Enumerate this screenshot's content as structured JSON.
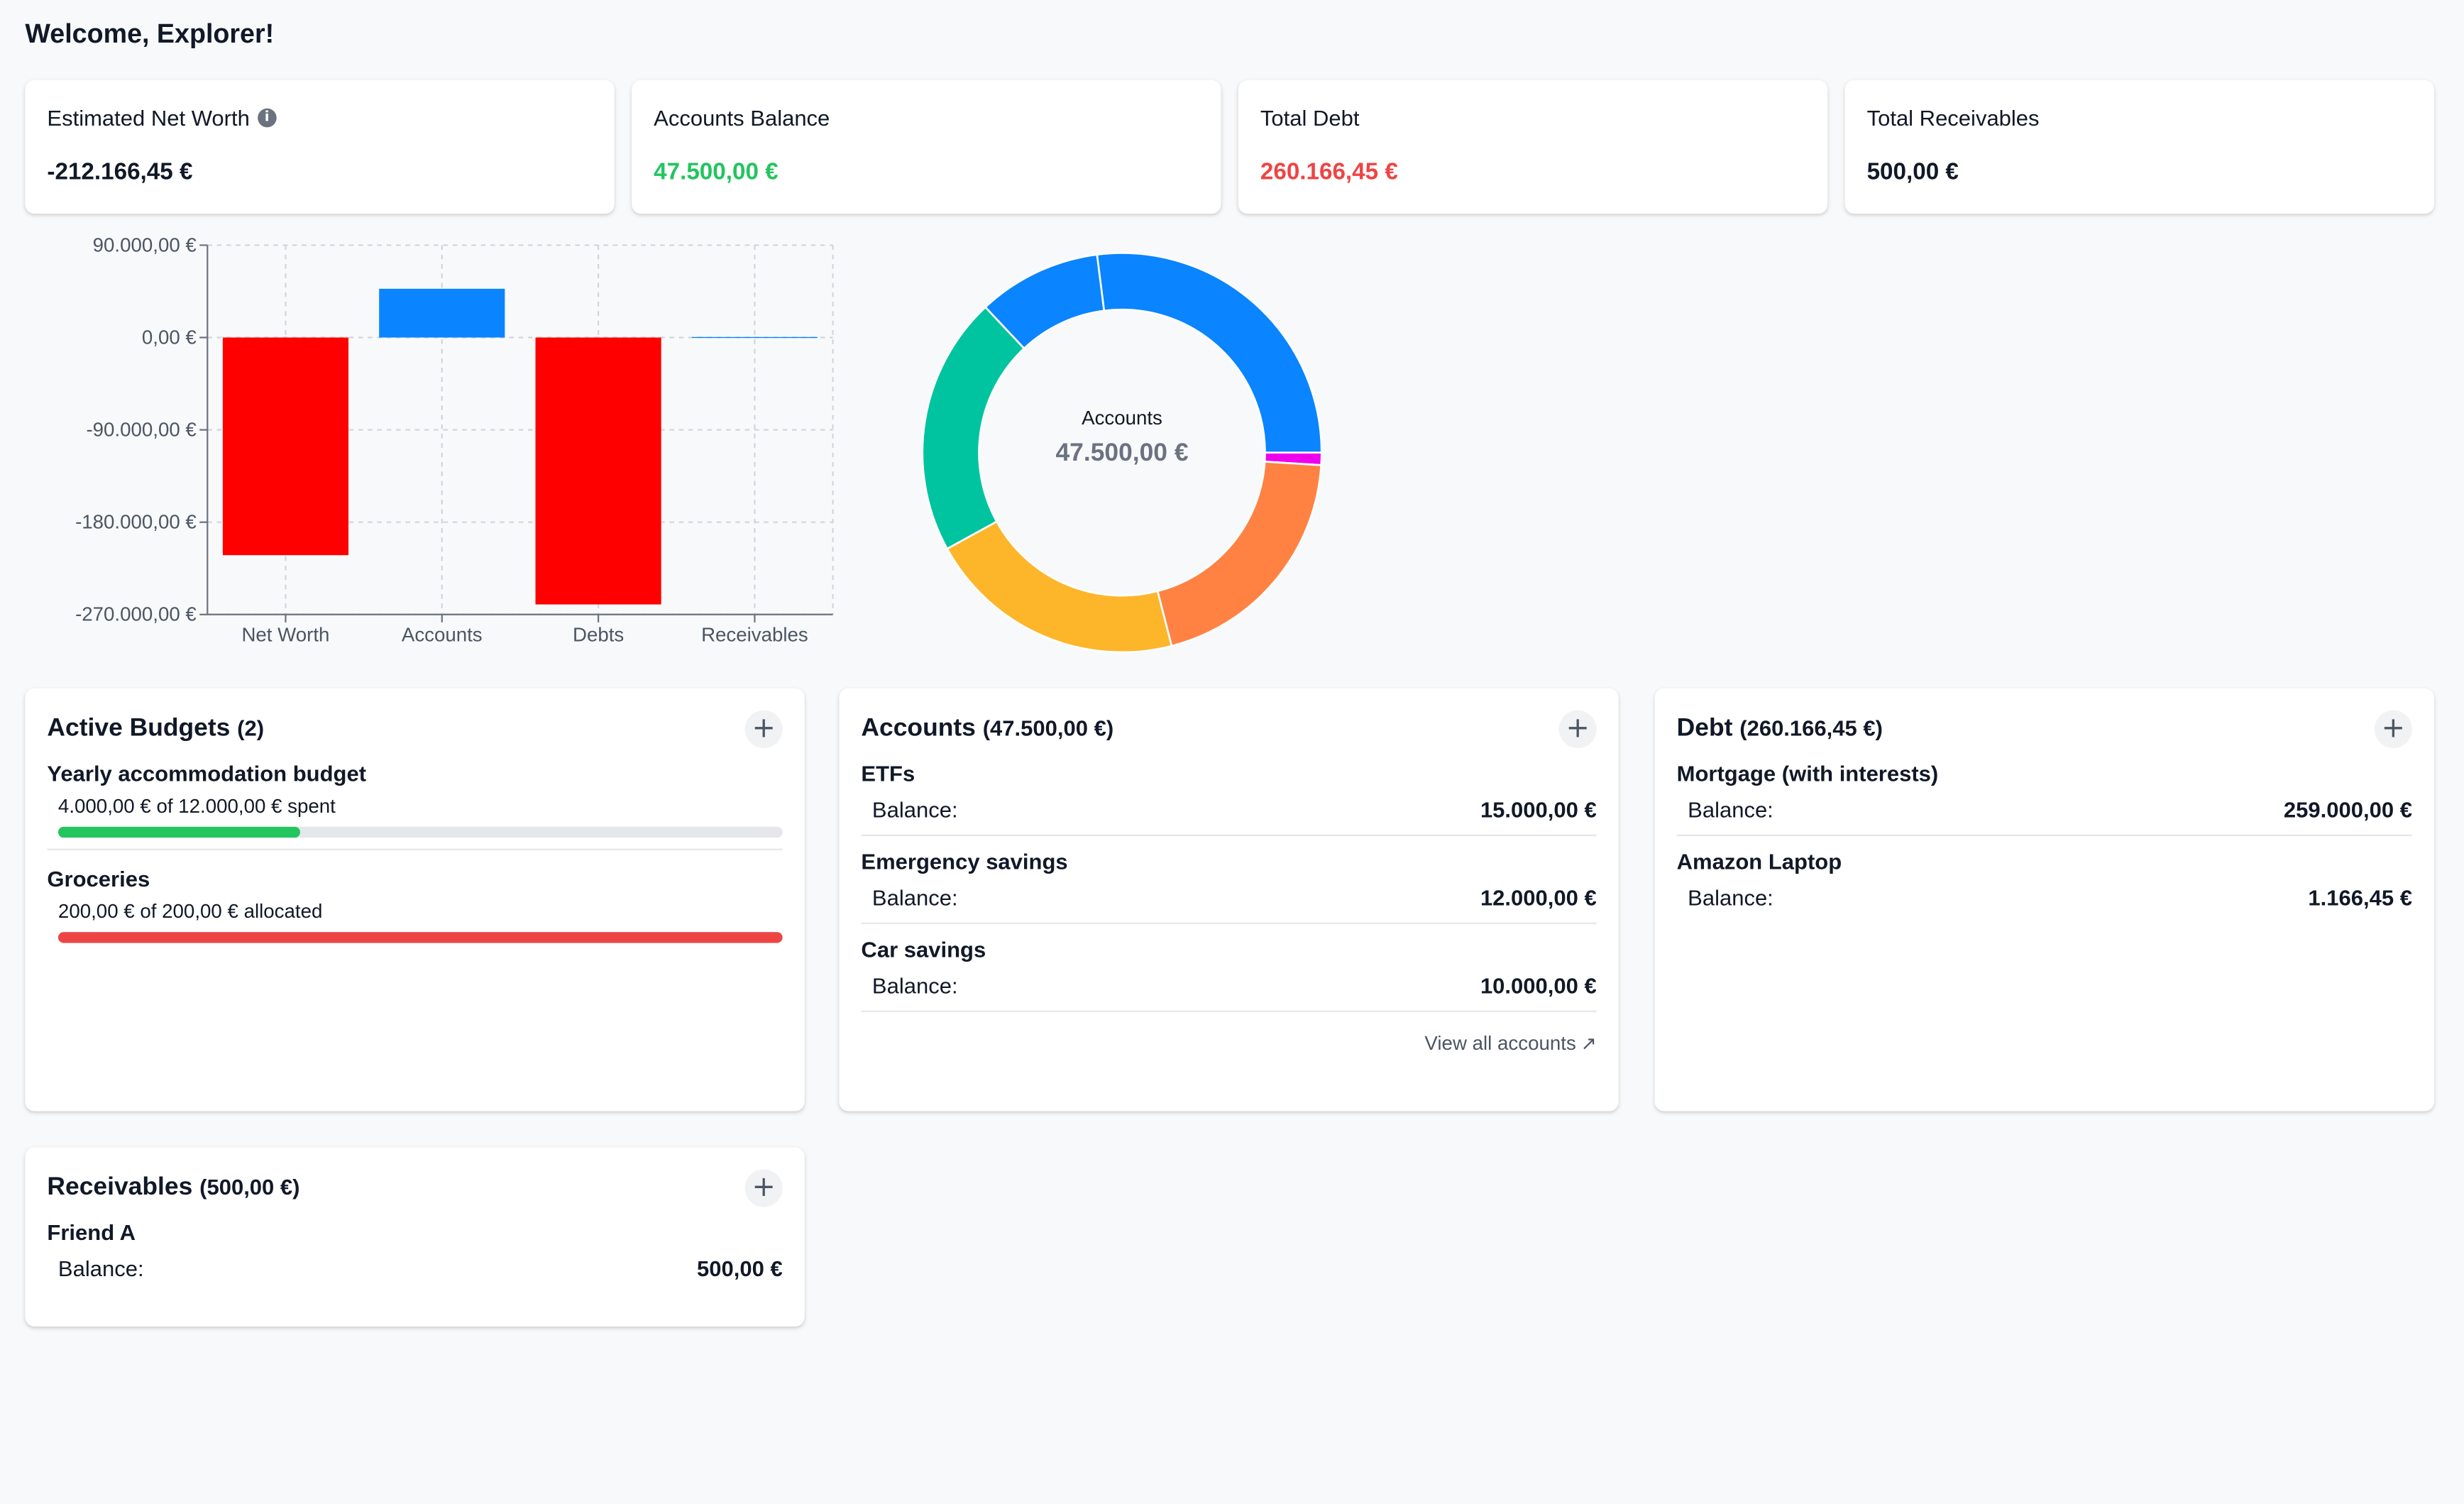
{
  "welcome": "Welcome, Explorer!",
  "stats": [
    {
      "label": "Estimated Net Worth",
      "value": "-212.166,45 €",
      "color": "#111827"
    },
    {
      "label": "Accounts Balance",
      "value": "47.500,00 €",
      "color": "#22c55e"
    },
    {
      "label": "Total Debt",
      "value": "260.166,45 €",
      "color": "#ef4444"
    },
    {
      "label": "Total Receivables",
      "value": "500,00 €",
      "color": "#111827"
    }
  ],
  "chart_data": [
    {
      "type": "bar",
      "categories": [
        "Net Worth",
        "Accounts",
        "Debts",
        "Receivables"
      ],
      "values": [
        -212166.45,
        47500,
        -260166.45,
        500
      ],
      "colors": [
        "#ff0000",
        "#0a84ff",
        "#ff0000",
        "#0a84ff"
      ],
      "y_ticks": [
        "90.000,00 €",
        "0,00 €",
        "-90.000,00 €",
        "-180.000,00 €",
        "-270.000,00 €"
      ],
      "ylim": [
        -270000,
        90000
      ],
      "grid": true
    },
    {
      "type": "pie",
      "center_label": "Accounts",
      "center_value": "47.500,00 €",
      "values": [
        27,
        1,
        20,
        21,
        21,
        10
      ],
      "colors": [
        "#0a84ff",
        "#ee00ee",
        "#ff8243",
        "#fdb52a",
        "#00c49f",
        "#0a84ff"
      ]
    }
  ],
  "budgets": {
    "title": "Active Budgets",
    "count": "(2)",
    "items": [
      {
        "name": "Yearly accommodation budget",
        "text": "4.000,00 € of 12.000,00 € spent",
        "fraction": 0.333,
        "color": "#22c55e"
      },
      {
        "name": "Groceries",
        "text": "200,00 € of 200,00 € allocated",
        "fraction": 1.0,
        "color": "#ef4444"
      }
    ]
  },
  "accounts": {
    "title": "Accounts",
    "total": "(47.500,00 €)",
    "items": [
      {
        "name": "ETFs",
        "label": "Balance:",
        "amount": "15.000,00 €"
      },
      {
        "name": "Emergency savings",
        "label": "Balance:",
        "amount": "12.000,00 €"
      },
      {
        "name": "Car savings",
        "label": "Balance:",
        "amount": "10.000,00 €"
      }
    ],
    "view_all": "View all accounts"
  },
  "debt": {
    "title": "Debt",
    "total": "(260.166,45 €)",
    "items": [
      {
        "name": "Mortgage (with interests)",
        "label": "Balance:",
        "amount": "259.000,00 €"
      },
      {
        "name": "Amazon Laptop",
        "label": "Balance:",
        "amount": "1.166,45 €"
      }
    ]
  },
  "receivables": {
    "title": "Receivables",
    "total": "(500,00 €)",
    "items": [
      {
        "name": "Friend A",
        "label": "Balance:",
        "amount": "500,00 €"
      }
    ]
  },
  "icons": {
    "add": "plus-icon",
    "info": "info-icon",
    "external": "external-link-icon"
  }
}
